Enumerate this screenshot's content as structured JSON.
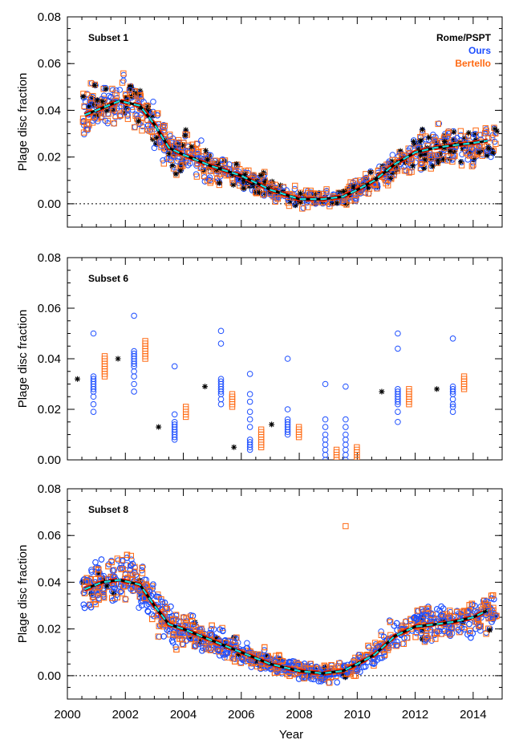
{
  "figure": {
    "xlabel": "Year",
    "ylabel": "Plage disc fraction",
    "x_ticks": [
      "2000",
      "2002",
      "2004",
      "2006",
      "2008",
      "2010",
      "2012",
      "2014"
    ],
    "legend": [
      {
        "label": "Rome/PSPT",
        "color": "#000000",
        "marker": "asterisk"
      },
      {
        "label": "Ours",
        "color": "#1e4fff",
        "marker": "circle"
      },
      {
        "label": "Bertello",
        "color": "#ff6a13",
        "marker": "square"
      }
    ],
    "colors": {
      "rome": "#000000",
      "ours": "#1e4fff",
      "bertello": "#ff6a13",
      "trend_red": "#ee2200",
      "trend_cyan": "#22dddd"
    }
  },
  "chart_data": [
    {
      "type": "scatter",
      "title": "Subset 1",
      "xlabel": "",
      "ylabel": "Plage disc fraction",
      "xlim": [
        2000,
        2015
      ],
      "ylim": [
        -0.01,
        0.08
      ],
      "yticks": [
        "0.00",
        "0.02",
        "0.04",
        "0.06",
        "0.08"
      ],
      "zero_line": true,
      "trend": {
        "x": [
          2000.6,
          2001.2,
          2001.8,
          2002.5,
          2003.0,
          2003.5,
          2004.0,
          2005.0,
          2006.0,
          2007.0,
          2008.0,
          2008.8,
          2009.5,
          2010.0,
          2010.6,
          2011.3,
          2012.0,
          2012.7,
          2013.3,
          2014.0,
          2014.5
        ],
        "y": [
          0.038,
          0.041,
          0.044,
          0.042,
          0.034,
          0.024,
          0.021,
          0.016,
          0.012,
          0.006,
          0.002,
          0.002,
          0.003,
          0.006,
          0.01,
          0.017,
          0.022,
          0.024,
          0.025,
          0.026,
          0.027
        ]
      },
      "scatter_density": "dense",
      "series": [
        {
          "name": "Rome/PSPT"
        },
        {
          "name": "Ours"
        },
        {
          "name": "Bertello"
        }
      ]
    },
    {
      "type": "scatter",
      "title": "Subset 6",
      "xlabel": "",
      "ylabel": "Plage disc fraction",
      "xlim": [
        2000,
        2015
      ],
      "ylim": [
        0.0,
        0.08
      ],
      "yticks": [
        "0.00",
        "0.02",
        "0.04",
        "0.06",
        "0.08"
      ],
      "zero_line": false,
      "groups": [
        {
          "x": 2000.9,
          "rome": 0.032,
          "ours": [
            0.019,
            0.022,
            0.025,
            0.027,
            0.028,
            0.029,
            0.03,
            0.031,
            0.032,
            0.033,
            0.05
          ],
          "bertello": [
            0.033,
            0.034,
            0.035,
            0.036,
            0.037,
            0.038,
            0.039,
            0.04,
            0.041
          ]
        },
        {
          "x": 2002.3,
          "rome": 0.04,
          "ours": [
            0.027,
            0.03,
            0.033,
            0.035,
            0.037,
            0.038,
            0.039,
            0.04,
            0.041,
            0.042,
            0.043,
            0.057
          ],
          "bertello": [
            0.04,
            0.041,
            0.042,
            0.043,
            0.044,
            0.045,
            0.046,
            0.047
          ]
        },
        {
          "x": 2003.7,
          "rome": 0.013,
          "ours": [
            0.008,
            0.009,
            0.01,
            0.011,
            0.012,
            0.013,
            0.014,
            0.015,
            0.018,
            0.037
          ],
          "bertello": [
            0.017,
            0.018,
            0.019,
            0.02,
            0.021
          ]
        },
        {
          "x": 2005.3,
          "rome": 0.029,
          "ours": [
            0.022,
            0.024,
            0.026,
            0.027,
            0.028,
            0.029,
            0.03,
            0.031,
            0.032,
            0.046,
            0.051
          ],
          "bertello": [
            0.021,
            0.022,
            0.023,
            0.024,
            0.025,
            0.026
          ]
        },
        {
          "x": 2006.3,
          "rome": 0.005,
          "ours": [
            0.004,
            0.005,
            0.006,
            0.007,
            0.008,
            0.013,
            0.016,
            0.019,
            0.023,
            0.026,
            0.034
          ],
          "bertello": [
            0.005,
            0.006,
            0.007,
            0.008,
            0.009,
            0.01,
            0.011,
            0.012
          ]
        },
        {
          "x": 2007.6,
          "rome": 0.014,
          "ours": [
            0.01,
            0.011,
            0.012,
            0.013,
            0.014,
            0.015,
            0.016,
            0.02,
            0.04
          ],
          "bertello": [
            0.009,
            0.01,
            0.011,
            0.012,
            0.013
          ]
        },
        {
          "x": 2008.9,
          "rome": null,
          "ours": [
            0.0,
            0.002,
            0.004,
            0.006,
            0.008,
            0.01,
            0.013,
            0.016,
            0.03
          ],
          "bertello": [
            0.0,
            0.001,
            0.002,
            0.003,
            0.004
          ]
        },
        {
          "x": 2009.6,
          "rome": null,
          "ours": [
            0.0,
            0.002,
            0.004,
            0.006,
            0.008,
            0.01,
            0.013,
            0.016,
            0.029
          ],
          "bertello": [
            0.0,
            0.001,
            0.002,
            0.003,
            0.004,
            0.005
          ]
        },
        {
          "x": 2011.4,
          "rome": 0.027,
          "ours": [
            0.015,
            0.019,
            0.022,
            0.023,
            0.024,
            0.025,
            0.026,
            0.027,
            0.028,
            0.044,
            0.05
          ],
          "bertello": [
            0.022,
            0.023,
            0.024,
            0.025,
            0.026,
            0.027,
            0.028
          ]
        },
        {
          "x": 2013.3,
          "rome": 0.028,
          "ours": [
            0.019,
            0.021,
            0.022,
            0.024,
            0.026,
            0.027,
            0.028,
            0.029,
            0.048
          ],
          "bertello": [
            0.028,
            0.029,
            0.03,
            0.031,
            0.032,
            0.033
          ]
        }
      ],
      "series": [
        {
          "name": "Rome/PSPT"
        },
        {
          "name": "Ours"
        },
        {
          "name": "Bertello"
        }
      ]
    },
    {
      "type": "scatter",
      "title": "Subset 8",
      "xlabel": "Year",
      "ylabel": "Plage disc fraction",
      "xlim": [
        2000,
        2015
      ],
      "ylim": [
        -0.01,
        0.08
      ],
      "yticks": [
        "0.00",
        "0.02",
        "0.04",
        "0.06",
        "0.08"
      ],
      "zero_line": true,
      "trend": {
        "x": [
          2000.6,
          2001.2,
          2001.8,
          2002.5,
          2003.0,
          2003.5,
          2004.0,
          2005.0,
          2006.0,
          2007.0,
          2008.0,
          2008.8,
          2009.5,
          2010.0,
          2010.6,
          2011.3,
          2012.0,
          2012.7,
          2013.3,
          2014.0,
          2014.5
        ],
        "y": [
          0.037,
          0.04,
          0.041,
          0.039,
          0.03,
          0.022,
          0.02,
          0.015,
          0.01,
          0.005,
          0.002,
          0.001,
          0.002,
          0.005,
          0.009,
          0.017,
          0.021,
          0.022,
          0.023,
          0.025,
          0.028
        ]
      },
      "scatter_density": "very-dense",
      "outliers": [
        {
          "series": "Bertello",
          "x": 2009.6,
          "y": 0.064
        }
      ],
      "series": [
        {
          "name": "Rome/PSPT"
        },
        {
          "name": "Ours"
        },
        {
          "name": "Bertello"
        }
      ]
    }
  ]
}
